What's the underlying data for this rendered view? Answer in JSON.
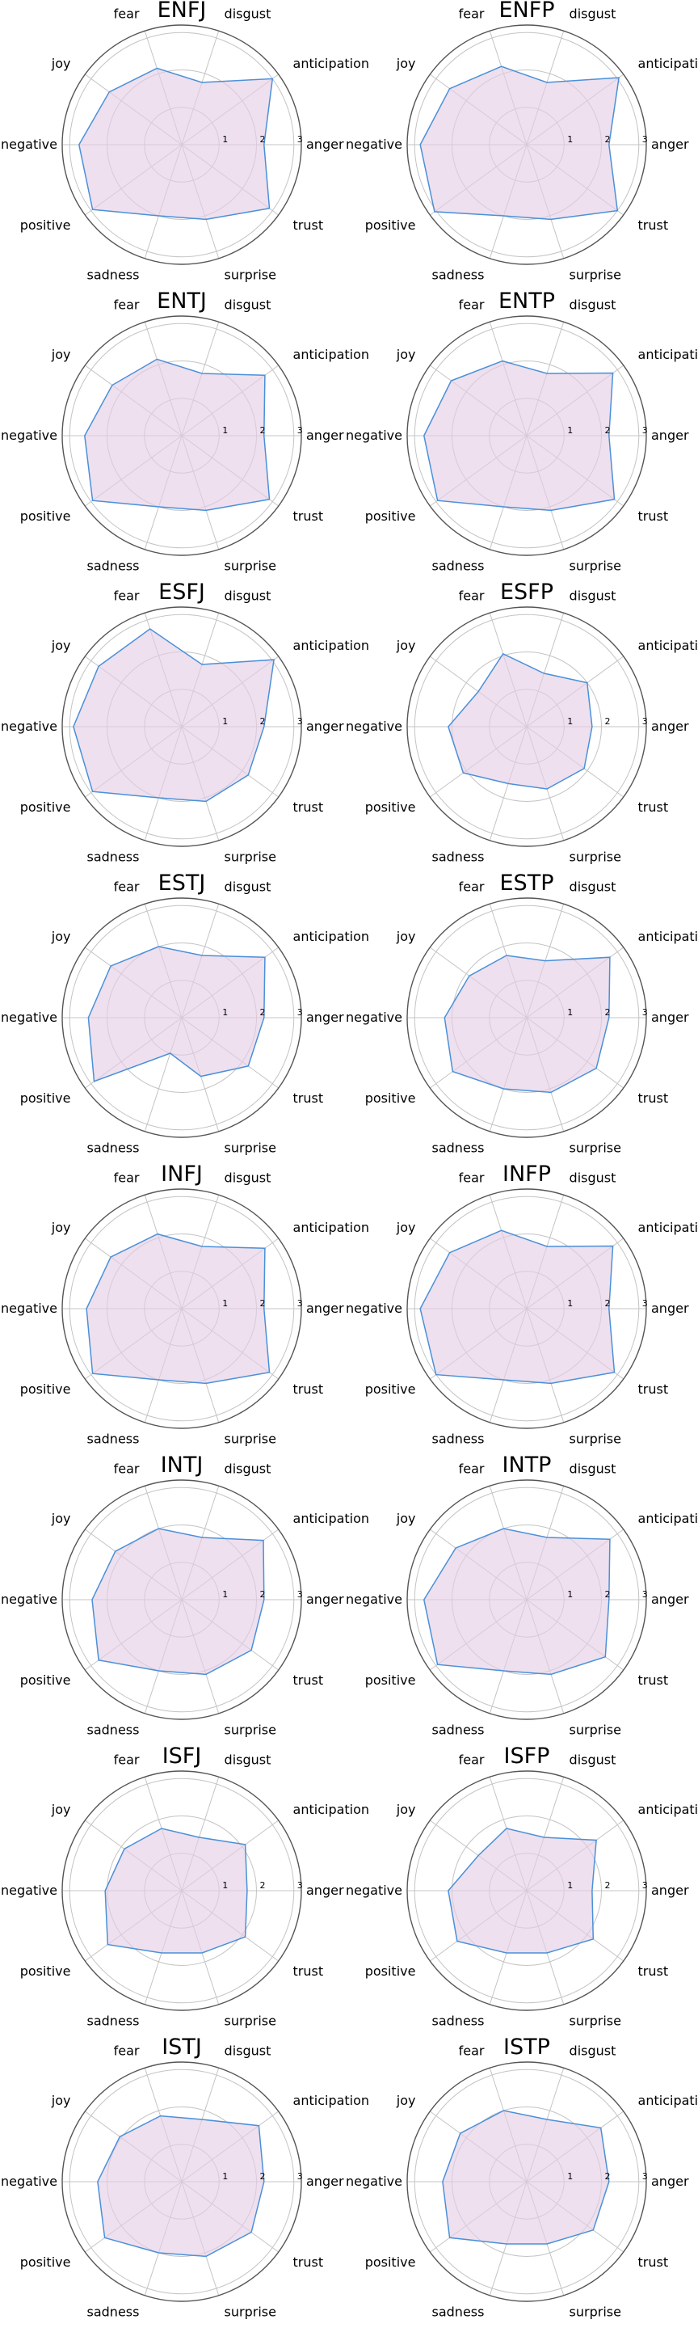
{
  "chart_data": {
    "type": "radar",
    "axes": [
      "anger",
      "anticipation",
      "disgust",
      "fear",
      "joy",
      "negative",
      "positive",
      "sadness",
      "surprise",
      "trust"
    ],
    "ticks": [
      1,
      2,
      3
    ],
    "rlim": [
      0,
      3.2
    ],
    "grid": true,
    "colors": {
      "line": "#4a90d9",
      "fill": "#e3cde5"
    },
    "charts": [
      {
        "title": "ENFJ",
        "values": [
          2.2,
          3.0,
          1.75,
          2.15,
          2.4,
          2.75,
          2.95,
          2.0,
          2.1,
          2.9
        ]
      },
      {
        "title": "ENFP",
        "values": [
          2.2,
          3.05,
          1.75,
          2.2,
          2.55,
          2.85,
          3.05,
          2.0,
          2.1,
          3.0
        ]
      },
      {
        "title": "ENTJ",
        "values": [
          2.2,
          2.75,
          1.75,
          2.15,
          2.3,
          2.6,
          2.95,
          2.0,
          2.1,
          2.9
        ]
      },
      {
        "title": "ENTP",
        "values": [
          2.2,
          2.85,
          1.75,
          2.1,
          2.5,
          2.75,
          2.95,
          2.0,
          2.1,
          2.9
        ]
      },
      {
        "title": "ESFJ",
        "values": [
          2.2,
          3.05,
          1.75,
          2.75,
          2.75,
          2.9,
          2.95,
          2.0,
          2.1,
          2.2
        ]
      },
      {
        "title": "ESFP",
        "values": [
          1.75,
          2.0,
          1.5,
          2.05,
          1.6,
          2.1,
          2.1,
          1.6,
          1.75,
          1.9
        ]
      },
      {
        "title": "ESTJ",
        "values": [
          2.2,
          2.75,
          1.75,
          2.0,
          2.35,
          2.5,
          2.9,
          1.0,
          1.65,
          2.2
        ]
      },
      {
        "title": "ESTP",
        "values": [
          2.2,
          2.75,
          1.6,
          1.75,
          1.9,
          2.2,
          2.45,
          2.0,
          2.1,
          2.3
        ]
      },
      {
        "title": "INFJ",
        "values": [
          2.2,
          2.75,
          1.75,
          2.1,
          2.35,
          2.55,
          2.95,
          2.0,
          2.1,
          2.9
        ]
      },
      {
        "title": "INFP",
        "values": [
          2.2,
          2.85,
          1.75,
          2.2,
          2.55,
          2.85,
          3.0,
          2.0,
          2.1,
          2.9
        ]
      },
      {
        "title": "INTJ",
        "values": [
          2.2,
          2.7,
          1.75,
          2.0,
          2.2,
          2.4,
          2.75,
          2.0,
          2.1,
          2.3
        ]
      },
      {
        "title": "INTP",
        "values": [
          2.2,
          2.75,
          1.75,
          2.0,
          2.35,
          2.75,
          2.95,
          2.0,
          2.1,
          2.6
        ]
      },
      {
        "title": "ISFJ",
        "values": [
          1.75,
          2.1,
          1.5,
          1.75,
          1.9,
          2.05,
          2.45,
          1.75,
          1.75,
          2.1
        ]
      },
      {
        "title": "ISFP",
        "values": [
          1.75,
          2.3,
          1.5,
          1.75,
          1.6,
          2.1,
          2.3,
          1.75,
          1.75,
          2.2
        ]
      },
      {
        "title": "ISTJ",
        "values": [
          2.2,
          2.55,
          1.75,
          1.85,
          2.05,
          2.25,
          2.55,
          2.0,
          2.1,
          2.3
        ]
      },
      {
        "title": "ISTP",
        "values": [
          2.2,
          2.45,
          1.75,
          2.0,
          2.2,
          2.25,
          2.55,
          1.75,
          1.75,
          2.2
        ]
      }
    ]
  }
}
